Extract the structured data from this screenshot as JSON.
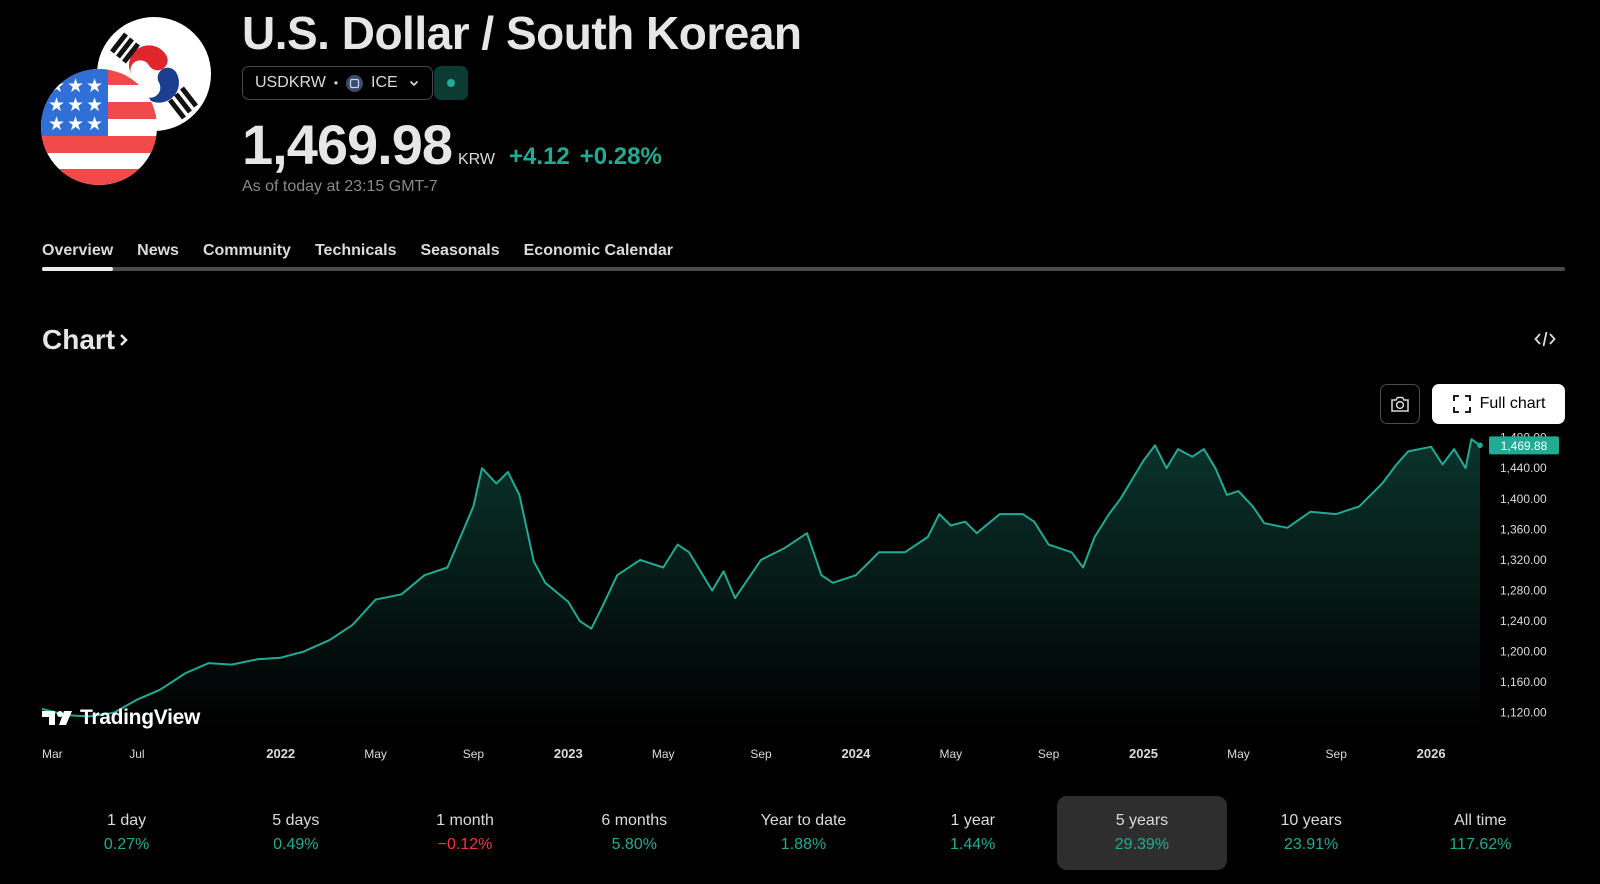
{
  "header": {
    "title": "U.S. Dollar / South Korean",
    "symbol": "USDKRW",
    "exchange": "ICE",
    "price": "1,469.98",
    "currency": "KRW",
    "change": "+4.12",
    "change_pct": "+0.28%",
    "as_of": "As of today at 23:15 GMT-7",
    "status_color": "#22ab94"
  },
  "tabs": [
    {
      "label": "Overview",
      "active": true
    },
    {
      "label": "News"
    },
    {
      "label": "Community"
    },
    {
      "label": "Technicals"
    },
    {
      "label": "Seasonals"
    },
    {
      "label": "Economic Calendar"
    }
  ],
  "chart_section": {
    "heading": "Chart",
    "full_chart_label": "Full chart",
    "icons": [
      "chevron-right-icon",
      "code-icon",
      "camera-icon",
      "fullscreen-icon"
    ]
  },
  "branding": {
    "logo_text": "TradingView"
  },
  "chart_data": {
    "type": "area",
    "line_color": "#22ab94",
    "ylim": [
      1100,
      1490
    ],
    "y_ticks": [
      "1,480.00",
      "1,440.00",
      "1,400.00",
      "1,360.00",
      "1,320.00",
      "1,280.00",
      "1,240.00",
      "1,200.00",
      "1,160.00",
      "1,120.00"
    ],
    "y_tick_values": [
      1480,
      1440,
      1400,
      1360,
      1320,
      1280,
      1240,
      1200,
      1160,
      1120
    ],
    "last_price_label": "1,469.88",
    "x_ticks": [
      {
        "label": "Mar",
        "x": 2021.17,
        "year": false
      },
      {
        "label": "Jul",
        "x": 2021.5,
        "year": false
      },
      {
        "label": "2022",
        "x": 2022.0,
        "year": true
      },
      {
        "label": "May",
        "x": 2022.33,
        "year": false
      },
      {
        "label": "Sep",
        "x": 2022.67,
        "year": false
      },
      {
        "label": "2023",
        "x": 2023.0,
        "year": true
      },
      {
        "label": "May",
        "x": 2023.33,
        "year": false
      },
      {
        "label": "Sep",
        "x": 2023.67,
        "year": false
      },
      {
        "label": "2024",
        "x": 2024.0,
        "year": true
      },
      {
        "label": "May",
        "x": 2024.33,
        "year": false
      },
      {
        "label": "Sep",
        "x": 2024.67,
        "year": false
      },
      {
        "label": "2025",
        "x": 2025.0,
        "year": true
      },
      {
        "label": "May",
        "x": 2025.33,
        "year": false
      },
      {
        "label": "Sep",
        "x": 2025.67,
        "year": false
      },
      {
        "label": "2026",
        "x": 2026.0,
        "year": true
      }
    ],
    "xlim": [
      2021.17,
      2026.17
    ],
    "series": [
      {
        "points": [
          [
            2021.17,
            1125
          ],
          [
            2021.25,
            1117
          ],
          [
            2021.33,
            1115
          ],
          [
            2021.42,
            1120
          ],
          [
            2021.5,
            1137
          ],
          [
            2021.58,
            1150
          ],
          [
            2021.67,
            1172
          ],
          [
            2021.75,
            1185
          ],
          [
            2021.83,
            1183
          ],
          [
            2021.92,
            1190
          ],
          [
            2022.0,
            1192
          ],
          [
            2022.08,
            1200
          ],
          [
            2022.17,
            1215
          ],
          [
            2022.25,
            1235
          ],
          [
            2022.33,
            1268
          ],
          [
            2022.42,
            1275
          ],
          [
            2022.5,
            1300
          ],
          [
            2022.58,
            1310
          ],
          [
            2022.67,
            1390
          ],
          [
            2022.7,
            1440
          ],
          [
            2022.75,
            1420
          ],
          [
            2022.79,
            1435
          ],
          [
            2022.83,
            1405
          ],
          [
            2022.88,
            1318
          ],
          [
            2022.92,
            1290
          ],
          [
            2023.0,
            1265
          ],
          [
            2023.04,
            1240
          ],
          [
            2023.08,
            1230
          ],
          [
            2023.12,
            1260
          ],
          [
            2023.17,
            1300
          ],
          [
            2023.25,
            1320
          ],
          [
            2023.33,
            1310
          ],
          [
            2023.38,
            1340
          ],
          [
            2023.42,
            1330
          ],
          [
            2023.5,
            1280
          ],
          [
            2023.54,
            1305
          ],
          [
            2023.58,
            1270
          ],
          [
            2023.67,
            1320
          ],
          [
            2023.75,
            1335
          ],
          [
            2023.79,
            1345
          ],
          [
            2023.83,
            1355
          ],
          [
            2023.88,
            1300
          ],
          [
            2023.92,
            1290
          ],
          [
            2024.0,
            1300
          ],
          [
            2024.08,
            1330
          ],
          [
            2024.17,
            1330
          ],
          [
            2024.25,
            1350
          ],
          [
            2024.29,
            1380
          ],
          [
            2024.33,
            1365
          ],
          [
            2024.38,
            1370
          ],
          [
            2024.42,
            1355
          ],
          [
            2024.5,
            1380
          ],
          [
            2024.58,
            1380
          ],
          [
            2024.62,
            1370
          ],
          [
            2024.67,
            1340
          ],
          [
            2024.75,
            1330
          ],
          [
            2024.79,
            1310
          ],
          [
            2024.83,
            1350
          ],
          [
            2024.88,
            1380
          ],
          [
            2024.92,
            1400
          ],
          [
            2025.0,
            1450
          ],
          [
            2025.04,
            1470
          ],
          [
            2025.08,
            1440
          ],
          [
            2025.12,
            1465
          ],
          [
            2025.17,
            1455
          ],
          [
            2025.21,
            1465
          ],
          [
            2025.25,
            1440
          ],
          [
            2025.29,
            1405
          ],
          [
            2025.33,
            1410
          ],
          [
            2025.38,
            1390
          ],
          [
            2025.42,
            1368
          ],
          [
            2025.5,
            1362
          ],
          [
            2025.58,
            1383
          ],
          [
            2025.67,
            1380
          ],
          [
            2025.75,
            1390
          ],
          [
            2025.83,
            1420
          ],
          [
            2025.88,
            1445
          ],
          [
            2025.92,
            1462
          ],
          [
            2026.0,
            1468
          ],
          [
            2026.04,
            1445
          ],
          [
            2026.08,
            1465
          ],
          [
            2026.12,
            1440
          ],
          [
            2026.14,
            1478
          ],
          [
            2026.17,
            1470
          ]
        ]
      }
    ]
  },
  "periods": [
    {
      "label": "1 day",
      "value": "0.27%",
      "negative": false
    },
    {
      "label": "5 days",
      "value": "0.49%",
      "negative": false
    },
    {
      "label": "1 month",
      "value": "−0.12%",
      "negative": true
    },
    {
      "label": "6 months",
      "value": "5.80%",
      "negative": false
    },
    {
      "label": "Year to date",
      "value": "1.88%",
      "negative": false
    },
    {
      "label": "1 year",
      "value": "1.44%",
      "negative": false
    },
    {
      "label": "5 years",
      "value": "29.39%",
      "negative": false,
      "active": true
    },
    {
      "label": "10 years",
      "value": "23.91%",
      "negative": false
    },
    {
      "label": "All time",
      "value": "117.62%",
      "negative": false
    }
  ]
}
